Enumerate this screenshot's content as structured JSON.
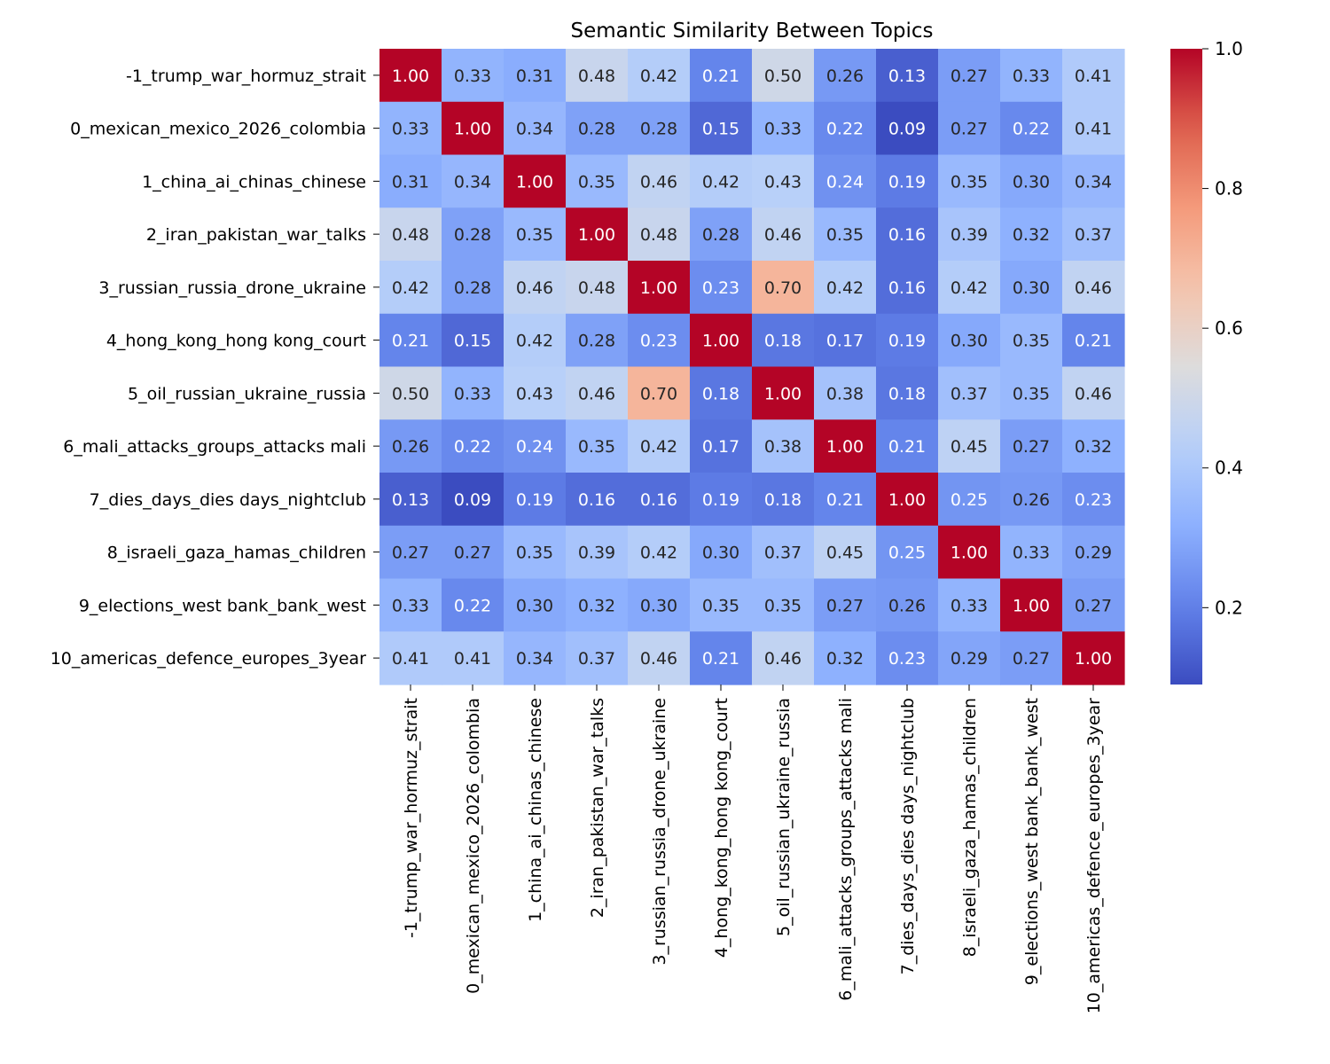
{
  "chart_data": {
    "type": "heatmap",
    "title": "Semantic Similarity Between Topics",
    "xlabel": "",
    "ylabel": "",
    "labels": [
      "-1_trump_war_hormuz_strait",
      "0_mexican_mexico_2026_colombia",
      "1_china_ai_chinas_chinese",
      "2_iran_pakistan_war_talks",
      "3_russian_russia_drone_ukraine",
      "4_hong_kong_hong kong_court",
      "5_oil_russian_ukraine_russia",
      "6_mali_attacks_groups_attacks mali",
      "7_dies_days_dies days_nightclub",
      "8_israeli_gaza_hamas_children",
      "9_elections_west bank_bank_west",
      "10_americas_defence_europes_3year"
    ],
    "matrix": [
      [
        1.0,
        0.33,
        0.31,
        0.48,
        0.42,
        0.21,
        0.5,
        0.26,
        0.13,
        0.27,
        0.33,
        0.41
      ],
      [
        0.33,
        1.0,
        0.34,
        0.28,
        0.28,
        0.15,
        0.33,
        0.22,
        0.09,
        0.27,
        0.22,
        0.41
      ],
      [
        0.31,
        0.34,
        1.0,
        0.35,
        0.46,
        0.42,
        0.43,
        0.24,
        0.19,
        0.35,
        0.3,
        0.34
      ],
      [
        0.48,
        0.28,
        0.35,
        1.0,
        0.48,
        0.28,
        0.46,
        0.35,
        0.16,
        0.39,
        0.32,
        0.37
      ],
      [
        0.42,
        0.28,
        0.46,
        0.48,
        1.0,
        0.23,
        0.7,
        0.42,
        0.16,
        0.42,
        0.3,
        0.46
      ],
      [
        0.21,
        0.15,
        0.42,
        0.28,
        0.23,
        1.0,
        0.18,
        0.17,
        0.19,
        0.3,
        0.35,
        0.21
      ],
      [
        0.5,
        0.33,
        0.43,
        0.46,
        0.7,
        0.18,
        1.0,
        0.38,
        0.18,
        0.37,
        0.35,
        0.46
      ],
      [
        0.26,
        0.22,
        0.24,
        0.35,
        0.42,
        0.17,
        0.38,
        1.0,
        0.21,
        0.45,
        0.27,
        0.32
      ],
      [
        0.13,
        0.09,
        0.19,
        0.16,
        0.16,
        0.19,
        0.18,
        0.21,
        1.0,
        0.25,
        0.26,
        0.23
      ],
      [
        0.27,
        0.27,
        0.35,
        0.39,
        0.42,
        0.3,
        0.37,
        0.45,
        0.25,
        1.0,
        0.33,
        0.29
      ],
      [
        0.33,
        0.22,
        0.3,
        0.32,
        0.3,
        0.35,
        0.35,
        0.27,
        0.26,
        0.33,
        1.0,
        0.27
      ],
      [
        0.41,
        0.41,
        0.34,
        0.37,
        0.46,
        0.21,
        0.46,
        0.32,
        0.23,
        0.29,
        0.27,
        1.0
      ]
    ],
    "value_format": "0.00",
    "colormap": "coolwarm",
    "color_range": [
      0.09,
      1.0
    ],
    "colorbar_ticks": [
      "0.2",
      "0.4",
      "0.6",
      "0.8",
      "1.0"
    ],
    "colorbar_tick_values": [
      0.2,
      0.4,
      0.6,
      0.8,
      1.0
    ],
    "grid": false,
    "legend": "colorbar-right"
  }
}
